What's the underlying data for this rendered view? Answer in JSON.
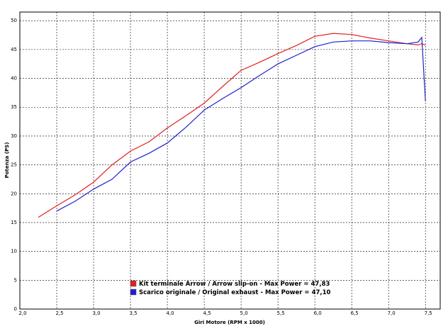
{
  "chart_data": {
    "type": "line",
    "xlabel": "Giri Motore (RPM x 1000)",
    "ylabel": "Potenza (PS)",
    "xlim": [
      2.0,
      7.7
    ],
    "ylim": [
      0,
      51.5
    ],
    "xticks": [
      {
        "value": 2.0,
        "label": "2,0"
      },
      {
        "value": 2.5,
        "label": "2,5"
      },
      {
        "value": 3.0,
        "label": "3,0"
      },
      {
        "value": 3.5,
        "label": "3,5"
      },
      {
        "value": 4.0,
        "label": "4,0"
      },
      {
        "value": 4.5,
        "label": "4,5"
      },
      {
        "value": 5.0,
        "label": "5,0"
      },
      {
        "value": 5.5,
        "label": "5,5"
      },
      {
        "value": 6.0,
        "label": "6,0"
      },
      {
        "value": 6.5,
        "label": "6,5"
      },
      {
        "value": 7.0,
        "label": "7,0"
      },
      {
        "value": 7.5,
        "label": "7,5"
      }
    ],
    "yticks": [
      0,
      5,
      10,
      15,
      20,
      25,
      30,
      35,
      40,
      45,
      50
    ],
    "grid": true,
    "legend_power_text": "- Max Power =",
    "series": [
      {
        "name": "Kit terminale Arrow / Arrow slip-on",
        "max_power_label": "47,83",
        "color": "#e02020",
        "x": [
          2.25,
          2.5,
          2.75,
          3.0,
          3.25,
          3.5,
          3.75,
          4.0,
          4.25,
          4.5,
          4.75,
          5.0,
          5.25,
          5.5,
          5.75,
          6.0,
          6.25,
          6.5,
          6.75,
          7.0,
          7.25,
          7.4,
          7.45,
          7.5
        ],
        "values": [
          15.9,
          17.9,
          19.8,
          22.0,
          25.0,
          27.4,
          29.0,
          31.4,
          33.5,
          35.7,
          38.6,
          41.4,
          42.8,
          44.3,
          45.7,
          47.3,
          47.8,
          47.6,
          47.0,
          46.5,
          46.0,
          45.8,
          46.0,
          45.8
        ]
      },
      {
        "name": "Scarico originale / Original exhaust",
        "max_power_label": "47,10",
        "color": "#2020d0",
        "x": [
          2.5,
          2.75,
          3.0,
          3.25,
          3.5,
          3.75,
          4.0,
          4.25,
          4.5,
          4.75,
          5.0,
          5.25,
          5.5,
          5.75,
          6.0,
          6.25,
          6.5,
          6.75,
          7.0,
          7.25,
          7.4,
          7.45,
          7.5
        ],
        "values": [
          17.0,
          18.7,
          20.8,
          22.5,
          25.5,
          27.0,
          28.8,
          31.5,
          34.5,
          36.5,
          38.4,
          40.5,
          42.5,
          44.0,
          45.5,
          46.3,
          46.5,
          46.5,
          46.2,
          46.0,
          46.3,
          47.1,
          36.0
        ]
      }
    ]
  }
}
